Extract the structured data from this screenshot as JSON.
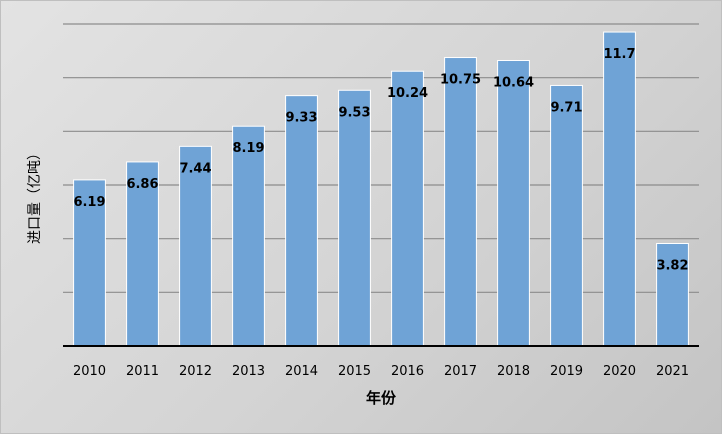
{
  "chart_data": {
    "type": "bar",
    "categories": [
      "2010",
      "2011",
      "2012",
      "2013",
      "2014",
      "2015",
      "2016",
      "2017",
      "2018",
      "2019",
      "2020",
      "2021"
    ],
    "values": [
      6.19,
      6.86,
      7.44,
      8.19,
      9.33,
      9.53,
      10.24,
      10.75,
      10.64,
      9.71,
      11.7,
      3.82
    ],
    "data_labels": [
      "6.19",
      "6.86",
      "7.44",
      "8.19",
      "9.33",
      "9.53",
      "10.24",
      "10.75",
      "10.64",
      "9.71",
      "11.7",
      "3.82"
    ],
    "title": "",
    "xlabel": "年份",
    "ylabel": "进口量（亿吨）",
    "ylim": [
      0,
      12
    ],
    "y_gridline_step": 2,
    "grid": true,
    "y_tick_labels_shown": false,
    "legend": "none",
    "colors": {
      "bar": "#6fa3d6",
      "bar_border": "#ffffff",
      "gridline": "#8c8c8c",
      "axis": "#000000"
    }
  }
}
